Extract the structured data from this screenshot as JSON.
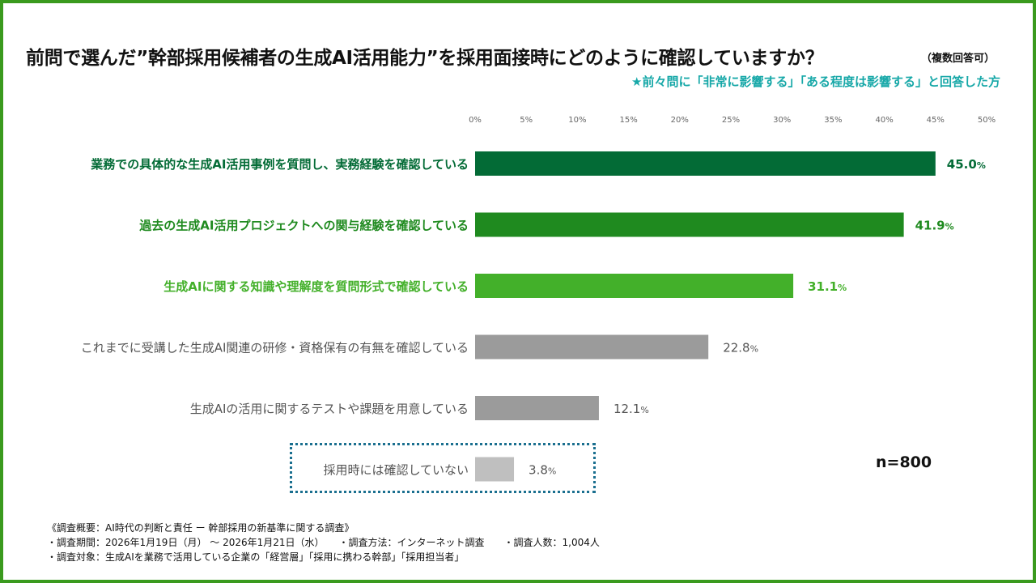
{
  "title": "前問で選んだ”幹部採用候補者の生成AI活用能力”を採用面接時にどのように確認していますか？",
  "title_note": "（複数回答可）",
  "subtitle": "★前々問に「非常に影響する」「ある程度は影響する」と回答した方",
  "sample_size": "n=800",
  "footer": {
    "line1": "《調査概要：AI時代の判断と責任 ー 幹部採用の新基準に関する調査》",
    "line2": "・調査期間：2026年1月19日（月） 〜 2026年1月21日（水）　　・調査方法：インターネット調査　　・調査人数：1,004人",
    "line3": "・調査対象：生成AIを業務で活用している企業の「経営層」「採用に携わる幹部」「採用担当者」"
  },
  "chart_data": {
    "type": "bar",
    "orientation": "horizontal",
    "categories": [
      "業務での具体的な生成AI活用事例を質問し、実務経験を確認している",
      "過去の生成AI活用プロジェクトへの関与経験を確認している",
      "生成AIに関する知識や理解度を質問形式で確認している",
      "これまでに受講した生成AI関連の研修・資格保有の有無を確認している",
      "生成AIの活用に関するテストや課題を用意している",
      "採用時には確認していない"
    ],
    "values": [
      45.0,
      41.9,
      31.1,
      22.8,
      12.1,
      3.8
    ],
    "value_labels": [
      "45.0",
      "41.9",
      "31.1",
      "22.8",
      "12.1",
      "3.8"
    ],
    "value_unit": "%",
    "colors": [
      "#036b36",
      "#1f8a1f",
      "#43b02a",
      "#9b9b9b",
      "#9b9b9b",
      "#bfbfbf"
    ],
    "label_colors": [
      "#036b36",
      "#1f8a1f",
      "#43b02a",
      "#555555",
      "#555555",
      "#555555"
    ],
    "xlim": [
      0,
      50
    ],
    "ticks": [
      "0%",
      "5%",
      "10%",
      "15%",
      "20%",
      "25%",
      "30%",
      "35%",
      "40%",
      "45%",
      "50%"
    ],
    "tick_values": [
      0,
      5,
      10,
      15,
      20,
      25,
      30,
      35,
      40,
      45,
      50
    ],
    "grid": false
  }
}
